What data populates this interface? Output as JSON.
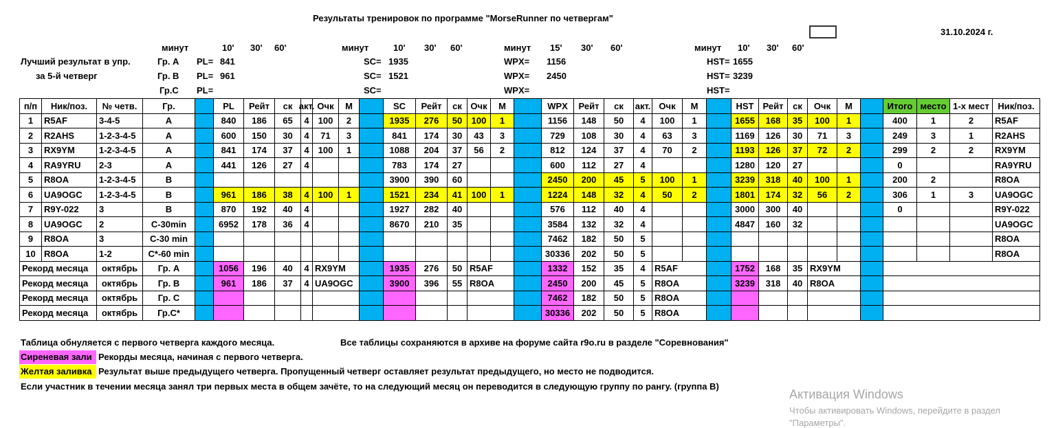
{
  "header": {
    "title": "Результаты тренировок по программе \"MorseRunner по четвергам\"",
    "date": "31.10.2024 г."
  },
  "best": {
    "label": [
      "Лучший результат  в упр.",
      "за 5-й четверг"
    ],
    "groups": [
      "Гр. А",
      "Гр. В",
      "Гр.С"
    ],
    "blocks": [
      {
        "unit": "минут",
        "durations": [
          "10'",
          "30'",
          "60'"
        ],
        "key": "PL=",
        "values": [
          841,
          961,
          null
        ]
      },
      {
        "unit": "минут",
        "durations": [
          "10'",
          "30'",
          "60'"
        ],
        "key": "SC=",
        "values": [
          1935,
          1521,
          null
        ]
      },
      {
        "unit": "минут",
        "durations": [
          "15'",
          "30'",
          "60'"
        ],
        "key": "WPX=",
        "values": [
          1156,
          2450,
          null
        ]
      },
      {
        "unit": "минут",
        "durations": [
          "10'",
          "30'",
          "60'"
        ],
        "key": "HST=",
        "values": [
          1655,
          3239,
          null
        ]
      }
    ]
  },
  "table": {
    "columns": [
      "п/п",
      "Ник/поз.",
      "№ четв.",
      "Гр.",
      "PL",
      "Рейт",
      "ск",
      "акт.",
      "Очк",
      "М",
      "SC",
      "Рейт",
      "ск",
      "Очк",
      "М",
      "WPX",
      "Рейт",
      "ск",
      "акт.",
      "Очк",
      "М",
      "HST",
      "Рейт",
      "ск",
      "Очк",
      "М",
      "Итого",
      "место",
      "1-х мест",
      "Ник/поз."
    ],
    "rows": [
      [
        1,
        "R5AF",
        "3-4-5",
        "A",
        840,
        186,
        65,
        4,
        100,
        2,
        1935,
        276,
        50,
        100,
        1,
        1156,
        148,
        50,
        4,
        100,
        1,
        1655,
        168,
        35,
        100,
        1,
        400,
        1,
        2,
        "R5AF"
      ],
      [
        2,
        "R2AHS",
        "1-2-3-4-5",
        "A",
        600,
        150,
        30,
        4,
        71,
        3,
        841,
        174,
        30,
        43,
        3,
        729,
        108,
        30,
        4,
        63,
        3,
        1169,
        126,
        30,
        71,
        3,
        249,
        3,
        1,
        "R2AHS"
      ],
      [
        3,
        "RX9YM",
        "1-2-3-4-5",
        "A",
        841,
        174,
        37,
        4,
        100,
        1,
        1088,
        204,
        37,
        56,
        2,
        812,
        124,
        37,
        4,
        70,
        2,
        1193,
        126,
        37,
        72,
        2,
        299,
        2,
        2,
        "RX9YM"
      ],
      [
        4,
        "RA9YRU",
        "2-3",
        "A",
        441,
        126,
        27,
        4,
        null,
        null,
        783,
        174,
        27,
        null,
        null,
        600,
        112,
        27,
        4,
        null,
        null,
        1280,
        120,
        27,
        null,
        null,
        0,
        null,
        null,
        "RA9YRU"
      ],
      [
        5,
        "R8OA",
        "1-2-3-4-5",
        "B",
        null,
        null,
        null,
        null,
        null,
        null,
        3900,
        390,
        60,
        null,
        null,
        2450,
        200,
        45,
        5,
        100,
        1,
        3239,
        318,
        40,
        100,
        1,
        200,
        2,
        null,
        "R8OA"
      ],
      [
        6,
        "UA9OGC",
        "1-2-3-4-5",
        "B",
        961,
        186,
        38,
        4,
        100,
        1,
        1521,
        234,
        41,
        100,
        1,
        1224,
        148,
        32,
        4,
        50,
        2,
        1801,
        174,
        32,
        56,
        2,
        306,
        1,
        3,
        "UA9OGC"
      ],
      [
        7,
        "R9Y-022",
        "3",
        "B",
        870,
        192,
        40,
        4,
        null,
        null,
        1927,
        282,
        40,
        null,
        null,
        576,
        112,
        40,
        4,
        null,
        null,
        3000,
        300,
        40,
        null,
        null,
        0,
        null,
        null,
        "R9Y-022"
      ],
      [
        8,
        "UA9OGC",
        "2",
        "C-30min",
        6952,
        178,
        36,
        4,
        null,
        null,
        8670,
        210,
        35,
        null,
        null,
        3584,
        132,
        32,
        4,
        null,
        null,
        4847,
        160,
        32,
        null,
        null,
        null,
        null,
        null,
        "UA9OGC"
      ],
      [
        9,
        "R8OA",
        "3",
        "C-30 min",
        null,
        null,
        null,
        null,
        null,
        null,
        null,
        null,
        null,
        null,
        null,
        7462,
        182,
        50,
        5,
        null,
        null,
        null,
        null,
        null,
        null,
        null,
        null,
        null,
        null,
        "R8OA"
      ],
      [
        10,
        "R8OA",
        "1-2",
        "C*-60 min",
        null,
        null,
        null,
        null,
        null,
        null,
        null,
        null,
        null,
        null,
        null,
        30336,
        202,
        50,
        5,
        null,
        null,
        null,
        null,
        null,
        null,
        null,
        null,
        null,
        null,
        "R8OA"
      ]
    ],
    "records": [
      [
        "Рекорд месяца",
        null,
        "октябрь",
        "Гр. А",
        1056,
        196,
        40,
        4,
        "RX9YM",
        null,
        1935,
        276,
        50,
        "R5AF",
        null,
        1332,
        152,
        35,
        4,
        "R5AF",
        null,
        1752,
        168,
        35,
        "RX9YM",
        null,
        null,
        null,
        null,
        null
      ],
      [
        "Рекорд месяца",
        null,
        "октябрь",
        "Гр. В",
        961,
        186,
        37,
        4,
        "UA9OGC",
        null,
        3900,
        396,
        55,
        "R8OA",
        null,
        2450,
        200,
        45,
        5,
        "R8OA",
        null,
        3239,
        318,
        40,
        "R8OA",
        null,
        null,
        null,
        null,
        null
      ],
      [
        "Рекорд месяца",
        null,
        "октябрь",
        "Гр. С",
        null,
        null,
        null,
        null,
        null,
        null,
        null,
        null,
        null,
        null,
        null,
        7462,
        182,
        50,
        5,
        "R8OA",
        null,
        null,
        null,
        null,
        null,
        null,
        null,
        null,
        null,
        null
      ],
      [
        "Рекорд месяца",
        null,
        "октябрь",
        "Гр.С*",
        null,
        null,
        null,
        null,
        null,
        null,
        null,
        null,
        null,
        null,
        null,
        30336,
        202,
        50,
        5,
        "R8OA",
        null,
        null,
        null,
        null,
        null,
        null,
        null,
        null,
        null,
        null
      ]
    ]
  },
  "notes": {
    "reset": "Таблица обнуляется с первого четверга каждого месяца.",
    "archive": "Все таблицы сохраняются в архиве на форуме сайта r9o.ru  в разделе \"Соревнования\"",
    "pink_label": "Сиреневая зали",
    "pink_text": "Рекорды месяца, начиная с первого четверга.",
    "yellow_label": "Желтая заливка",
    "yellow_text": "Результат выше предыдущего четверга. Пропущенный четверг оставляет результат предыдущего, но место не подводится.",
    "promotion": "Если участник в течении месяца занял три  первых места в общем зачёте, то на следующий месяц он переводится в следующую группу по рангу. (группа В)"
  },
  "watermark": {
    "title": "Активация Windows",
    "text": "Чтобы активировать Windows, перейдите в раздел",
    "link": "\"Параметры\"."
  }
}
